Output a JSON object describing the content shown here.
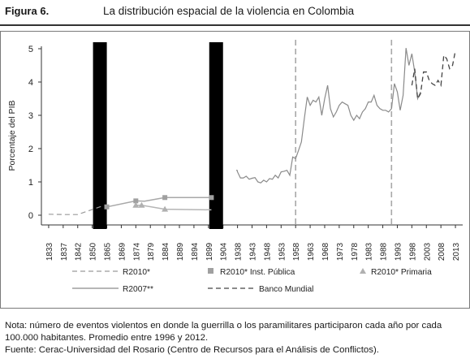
{
  "figure": {
    "label": "Figura 6.",
    "title": "La distribución espacial de la violencia en Colombia"
  },
  "chart_data": {
    "type": "line",
    "ylabel": "Porcentaje del PIB",
    "xlabel": "",
    "ylim": [
      0,
      5
    ],
    "yticks": [
      "0",
      "1",
      "2",
      "3",
      "4",
      "5"
    ],
    "grid": false,
    "legend_position": "bottom",
    "categories": [
      "1833",
      "1837",
      "1842",
      "1850",
      "1865",
      "1869",
      "1874",
      "1879",
      "1884",
      "1889",
      "1894",
      "1899",
      "1904",
      "1938",
      "1943",
      "1948",
      "1953",
      "1958",
      "1963",
      "1968",
      "1973",
      "1978",
      "1983",
      "1988",
      "1993",
      "1998",
      "2003",
      "2008",
      "2013"
    ],
    "breaks_after": [
      "1850",
      "1899"
    ],
    "reference_lines": [
      "1958",
      "1991"
    ],
    "series": [
      {
        "name": "R2010*",
        "style": "dashed-gray",
        "points": [
          [
            1833,
            0.03
          ],
          [
            1837,
            0.02
          ],
          [
            1842,
            0.02
          ],
          [
            1850,
            0.17
          ],
          [
            1860,
            0.27
          ]
        ]
      },
      {
        "name": "R2010* Inst. Pública",
        "style": "square-gray",
        "points": [
          [
            1865,
            0.25
          ],
          [
            1874,
            0.43
          ],
          [
            1877,
            0.42
          ],
          [
            1884,
            0.53
          ],
          [
            1900,
            0.53
          ]
        ]
      },
      {
        "name": "R2010* Primaria",
        "style": "triangle-gray",
        "points": [
          [
            1874,
            0.3
          ],
          [
            1876,
            0.3
          ],
          [
            1884,
            0.18
          ],
          [
            1900,
            0.16
          ]
        ]
      },
      {
        "name": "R2007**",
        "style": "solid-gray",
        "points": [
          [
            1935,
            1.35
          ],
          [
            1937,
            1.35
          ],
          [
            1938,
            1.3
          ],
          [
            1939,
            1.12
          ],
          [
            1940,
            1.12
          ],
          [
            1941,
            1.17
          ],
          [
            1942,
            1.08
          ],
          [
            1943,
            1.11
          ],
          [
            1944,
            1.13
          ],
          [
            1945,
            1.0
          ],
          [
            1946,
            0.97
          ],
          [
            1947,
            1.05
          ],
          [
            1948,
            1.0
          ],
          [
            1949,
            1.1
          ],
          [
            1950,
            1.08
          ],
          [
            1951,
            1.2
          ],
          [
            1952,
            1.12
          ],
          [
            1953,
            1.3
          ],
          [
            1954,
            1.32
          ],
          [
            1955,
            1.35
          ],
          [
            1956,
            1.2
          ],
          [
            1957,
            1.75
          ],
          [
            1958,
            1.7
          ],
          [
            1959,
            1.95
          ],
          [
            1960,
            2.2
          ],
          [
            1961,
            2.9
          ],
          [
            1962,
            3.55
          ],
          [
            1963,
            3.3
          ],
          [
            1964,
            3.45
          ],
          [
            1965,
            3.4
          ],
          [
            1966,
            3.55
          ],
          [
            1967,
            3.0
          ],
          [
            1968,
            3.5
          ],
          [
            1969,
            3.9
          ],
          [
            1970,
            3.2
          ],
          [
            1971,
            2.95
          ],
          [
            1972,
            3.1
          ],
          [
            1973,
            3.3
          ],
          [
            1974,
            3.4
          ],
          [
            1975,
            3.35
          ],
          [
            1976,
            3.3
          ],
          [
            1977,
            3.0
          ],
          [
            1978,
            2.85
          ],
          [
            1979,
            3.0
          ],
          [
            1980,
            2.9
          ],
          [
            1981,
            3.1
          ],
          [
            1982,
            3.2
          ],
          [
            1983,
            3.4
          ],
          [
            1984,
            3.4
          ],
          [
            1985,
            3.6
          ],
          [
            1986,
            3.3
          ],
          [
            1987,
            3.2
          ],
          [
            1988,
            3.15
          ],
          [
            1989,
            3.15
          ],
          [
            1990,
            3.1
          ],
          [
            1991,
            3.2
          ],
          [
            1992,
            3.95
          ],
          [
            1993,
            3.7
          ],
          [
            1994,
            3.15
          ],
          [
            1995,
            3.6
          ],
          [
            1996,
            5.02
          ],
          [
            1997,
            4.5
          ],
          [
            1998,
            4.85
          ],
          [
            1999,
            4.3
          ],
          [
            2000,
            3.5
          ],
          [
            2001,
            3.7
          ]
        ]
      },
      {
        "name": "Banco Mundial",
        "style": "dashed-dark",
        "points": [
          [
            1998,
            3.9
          ],
          [
            1999,
            4.4
          ],
          [
            2000,
            3.5
          ],
          [
            2001,
            3.65
          ],
          [
            2002,
            4.3
          ],
          [
            2003,
            4.3
          ],
          [
            2004,
            4.05
          ],
          [
            2005,
            3.95
          ],
          [
            2006,
            3.9
          ],
          [
            2007,
            4.05
          ],
          [
            2008,
            3.9
          ],
          [
            2009,
            4.8
          ],
          [
            2010,
            4.7
          ],
          [
            2011,
            4.4
          ],
          [
            2012,
            4.5
          ],
          [
            2013,
            4.95
          ]
        ]
      }
    ]
  },
  "notes": {
    "nota": "Nota: número de eventos violentos en donde la guerrilla o los paramilitares participaron cada año por cada 100.000 habitantes. Promedio entre 1996 y 2012.",
    "fuente": "Fuente: Cerac-Universidad del Rosario (Centro de Recursos para el Análisis de Conflictos)."
  }
}
